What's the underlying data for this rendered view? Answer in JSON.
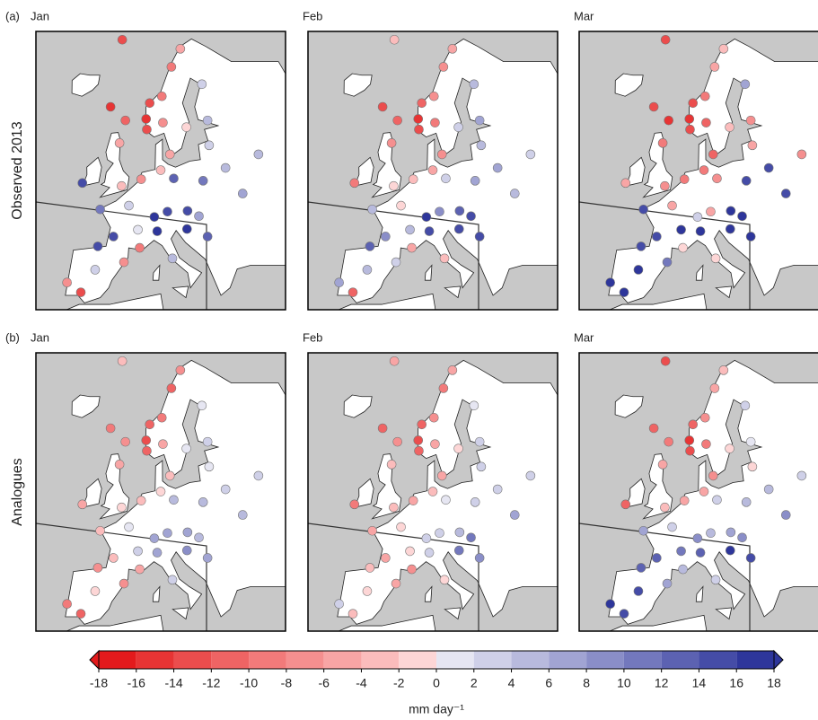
{
  "rows": [
    {
      "label": "(a)",
      "title": "Observed 2013",
      "maps": [
        {
          "title": "Jan",
          "values": [
            -14,
            -16,
            -14,
            -14,
            -10,
            -10,
            -6,
            -8,
            -2,
            4,
            2,
            -16,
            -12,
            -6,
            14,
            -4,
            -6,
            -4,
            -8,
            10,
            2,
            14,
            12,
            10,
            14,
            6,
            16,
            0,
            14,
            -10,
            16,
            4,
            2,
            -8,
            -14,
            -8,
            14,
            16,
            2,
            6,
            12,
            4,
            4
          ]
        },
        {
          "title": "Feb",
          "values": [
            -4,
            -16,
            -14,
            -12,
            -8,
            -8,
            -6,
            -10,
            2,
            6,
            4,
            -14,
            -12,
            -8,
            -10,
            -2,
            -8,
            -6,
            -4,
            4,
            -2,
            8,
            2,
            6,
            12,
            14,
            16,
            4,
            8,
            -6,
            14,
            -4,
            4,
            6,
            -12,
            2,
            12,
            14,
            4,
            4,
            14,
            2,
            6
          ]
        },
        {
          "title": "Mar",
          "values": [
            -14,
            -16,
            -14,
            -14,
            -10,
            -6,
            -4,
            -12,
            -4,
            -8,
            6,
            -14,
            -16,
            -10,
            -6,
            -8,
            -12,
            -10,
            -10,
            14,
            -6,
            -6,
            -8,
            14,
            16,
            16,
            2,
            16,
            14,
            -2,
            16,
            -2,
            16,
            16,
            16,
            10,
            14,
            16,
            -6,
            14,
            16,
            -8,
            14
          ]
        }
      ]
    },
    {
      "label": "(b)",
      "title": "Analogues",
      "maps": [
        {
          "title": "Jan",
          "values": [
            -4,
            -14,
            -12,
            -12,
            -10,
            -12,
            -8,
            -6,
            0,
            2,
            0,
            -10,
            -8,
            -6,
            -6,
            -2,
            -4,
            -2,
            -4,
            -4,
            0,
            6,
            4,
            4,
            6,
            4,
            6,
            2,
            -4,
            -6,
            6,
            2,
            -2,
            -10,
            -12,
            -8,
            -8,
            8,
            0,
            4,
            6,
            2,
            2
          ]
        },
        {
          "title": "Feb",
          "values": [
            -6,
            -14,
            -12,
            -12,
            -8,
            -10,
            -6,
            -6,
            -2,
            2,
            0,
            -12,
            -8,
            -4,
            -10,
            -4,
            -6,
            -4,
            -6,
            -6,
            -2,
            2,
            0,
            2,
            4,
            10,
            2,
            -2,
            -6,
            -8,
            2,
            -2,
            -2,
            2,
            -4,
            -6,
            -4,
            10,
            2,
            6,
            8,
            2,
            2
          ]
        },
        {
          "title": "Mar",
          "values": [
            -14,
            -16,
            -14,
            -12,
            -8,
            -6,
            -4,
            -10,
            -2,
            0,
            2,
            -12,
            -10,
            -6,
            -12,
            -4,
            -8,
            -6,
            -6,
            6,
            2,
            4,
            2,
            4,
            6,
            8,
            8,
            10,
            12,
            4,
            12,
            2,
            14,
            16,
            14,
            6,
            12,
            16,
            -2,
            8,
            14,
            2,
            4
          ]
        }
      ]
    }
  ],
  "stations": {
    "lon": [
      -8.7,
      5.3,
      5.7,
      6.2,
      10.4,
      14.4,
      19,
      10.7,
      18,
      25,
      25.5,
      -7,
      -1.3,
      -2.1,
      -10.2,
      0,
      12.6,
      10,
      4.9,
      -4.5,
      2.3,
      11.6,
      13.4,
      21,
      16.4,
      19,
      8.5,
      4.8,
      -0.6,
      5.4,
      9.2,
      12.5,
      -3.7,
      -9.1,
      -6,
      2.2,
      -3.8,
      16,
      24.1,
      30.5,
      20.5,
      37.6,
      27.5
    ],
    "lat": [
      70.9,
      60.4,
      59,
      62.5,
      63.4,
      67.3,
      69.7,
      59.9,
      59.3,
      60.2,
      65,
      62,
      60.2,
      57.2,
      51.9,
      51.5,
      55.7,
      53.6,
      52.4,
      48.4,
      48.9,
      48.1,
      52.5,
      52.2,
      48.2,
      47.5,
      47.4,
      45.7,
      44.8,
      43.3,
      45.5,
      41.9,
      40.4,
      38.7,
      37.4,
      41.4,
      43.5,
      45.8,
      56.9,
      50.5,
      44.8,
      55.7,
      53.9
    ]
  },
  "colorbar": {
    "label": "mm day⁻¹",
    "ticks": [
      -18,
      -16,
      -14,
      -12,
      -10,
      -8,
      -6,
      -4,
      -2,
      0,
      2,
      4,
      6,
      8,
      10,
      12,
      14,
      16,
      18
    ],
    "colors": [
      "#e31a1c",
      "#e73434",
      "#eb4d4d",
      "#ef6464",
      "#f27a7a",
      "#f58f8f",
      "#f8a5a5",
      "#fbbcbc",
      "#fdd6d6",
      "#e6e6f2",
      "#cfd0e8",
      "#b8badd",
      "#a1a4d3",
      "#8a8ec8",
      "#7378bd",
      "#5c62b2",
      "#454ca7",
      "#2e369b"
    ]
  }
}
